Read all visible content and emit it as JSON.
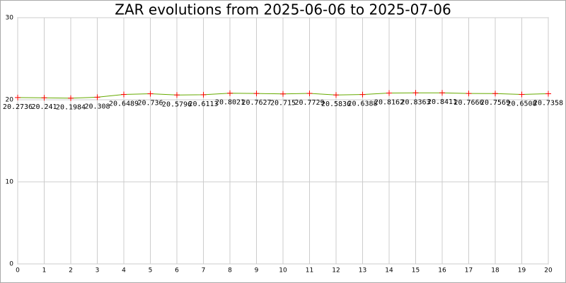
{
  "chart_data": {
    "type": "line",
    "title": "ZAR evolutions from 2025-06-06 to 2025-07-06",
    "x": [
      0,
      1,
      2,
      3,
      4,
      5,
      6,
      7,
      8,
      9,
      10,
      11,
      12,
      13,
      14,
      15,
      16,
      17,
      18,
      19,
      20
    ],
    "values": [
      20.2736,
      20.241,
      20.1984,
      20.308,
      20.6489,
      20.736,
      20.5796,
      20.6113,
      20.8021,
      20.7627,
      20.715,
      20.7729,
      20.5836,
      20.6388,
      20.8162,
      20.8363,
      20.8411,
      20.7666,
      20.7569,
      20.6508,
      20.7358
    ],
    "line_color": "#66aa00",
    "marker_color": "#ff0000",
    "xlim": [
      0,
      20
    ],
    "xticks": [
      0,
      1,
      2,
      3,
      4,
      5,
      6,
      7,
      8,
      9,
      10,
      11,
      12,
      13,
      14,
      15,
      16,
      17,
      18,
      19,
      20
    ],
    "ylim": [
      0,
      30
    ],
    "yticks": [
      0,
      10,
      20,
      30
    ],
    "grid": true
  }
}
